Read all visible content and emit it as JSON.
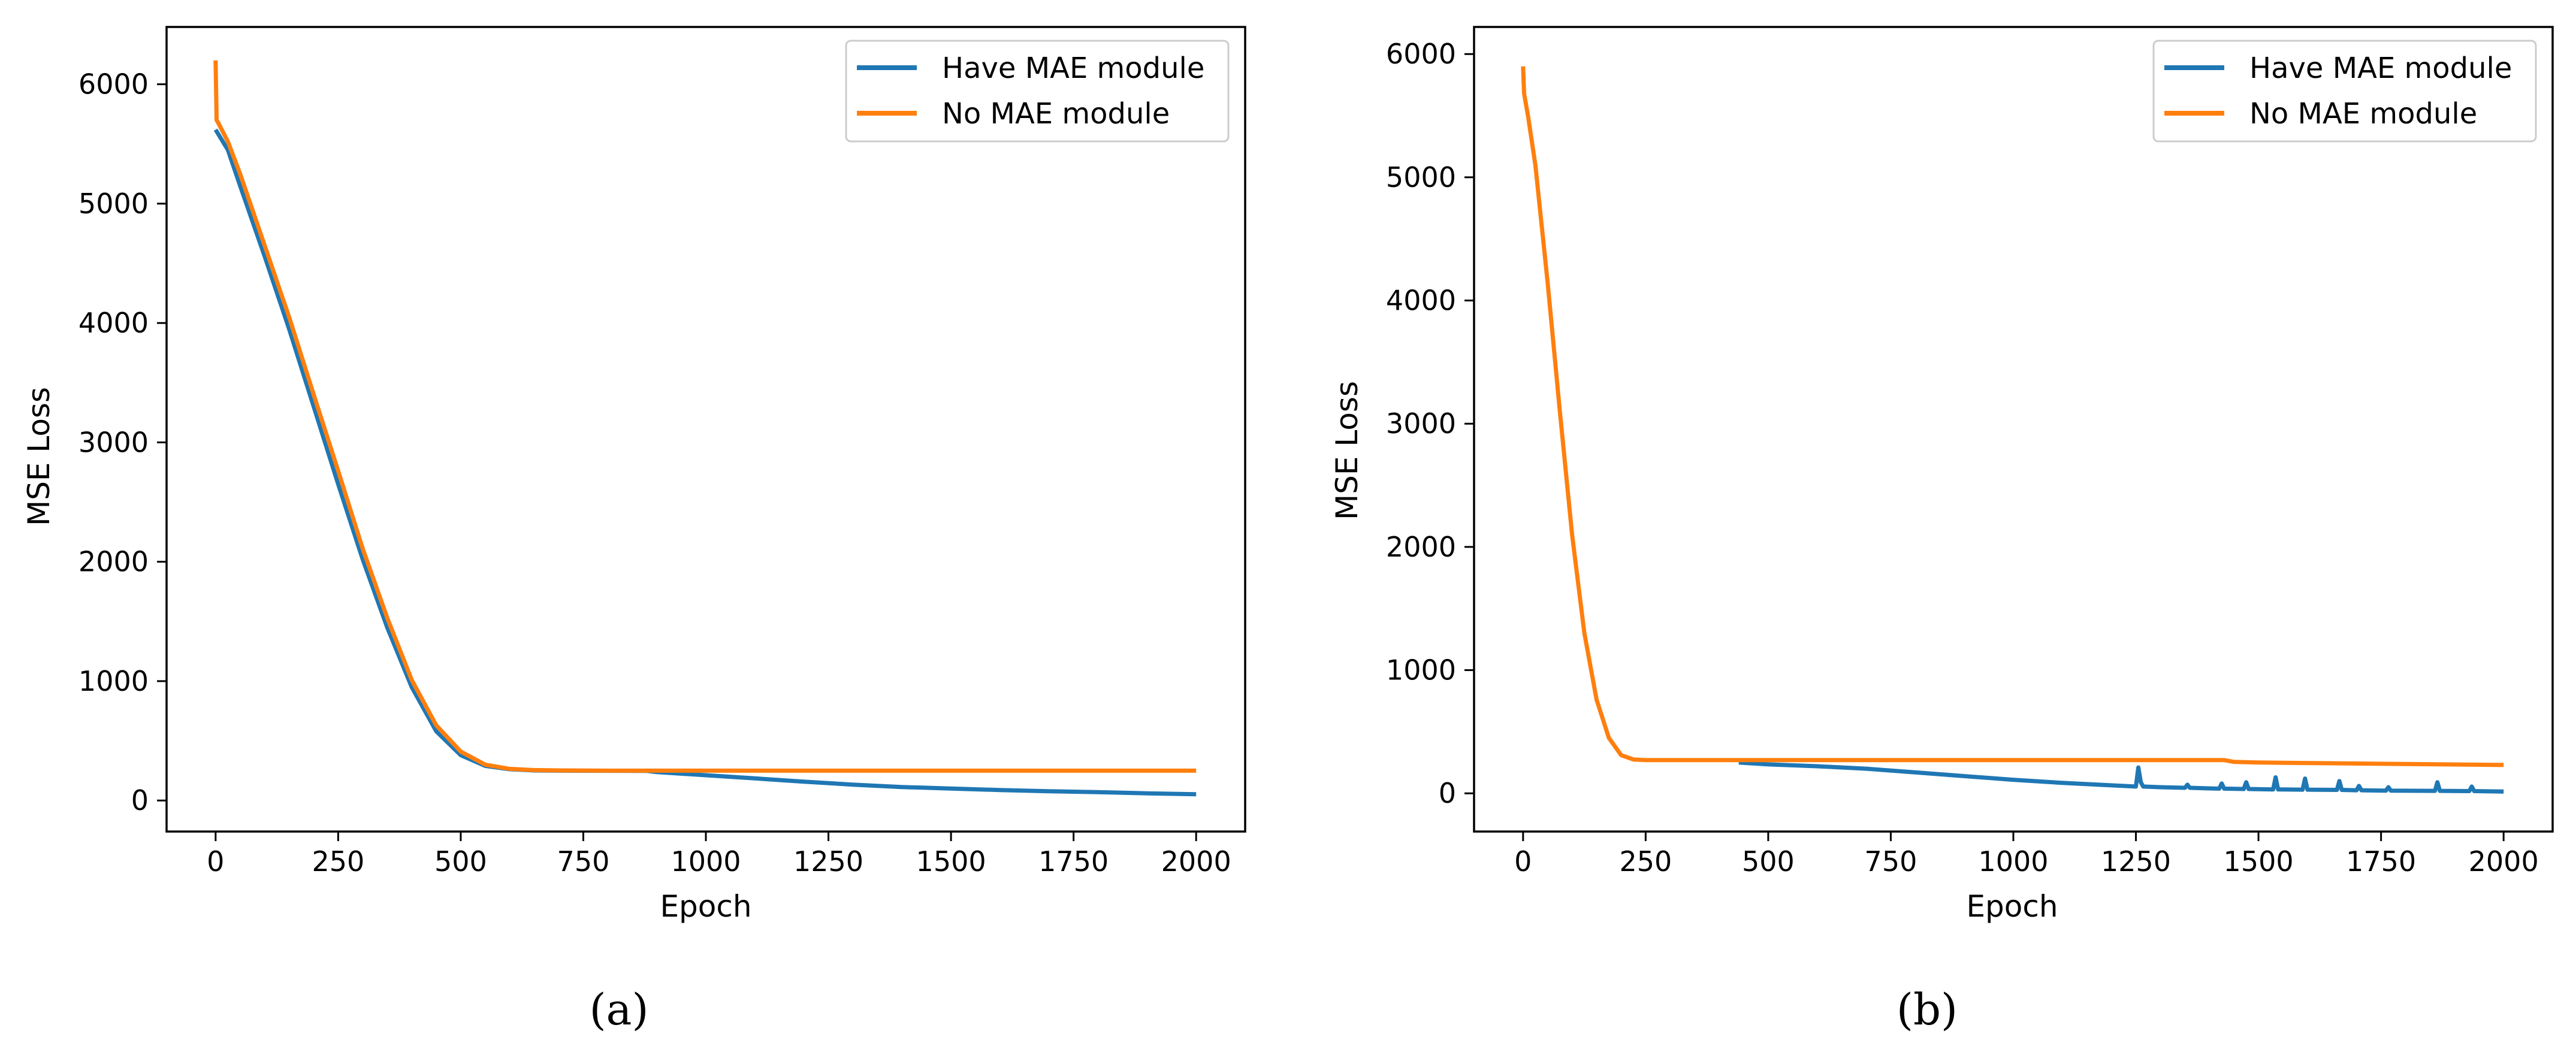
{
  "chart_data": [
    {
      "type": "line",
      "caption": "(a)",
      "xlabel": "Epoch",
      "ylabel": "MSE Loss",
      "xlim": [
        -100,
        2100
      ],
      "ylim": [
        -260,
        6480
      ],
      "xticks": [
        0,
        250,
        500,
        750,
        1000,
        1250,
        1500,
        1750,
        2000
      ],
      "yticks": [
        0,
        1000,
        2000,
        3000,
        4000,
        5000,
        6000
      ],
      "legend_position": "top-right",
      "grid": false,
      "series": [
        {
          "name": "Have MAE module",
          "color": "#1f77b4",
          "x": [
            0,
            25,
            50,
            100,
            150,
            200,
            250,
            300,
            350,
            400,
            450,
            500,
            550,
            600,
            650,
            700,
            800,
            880,
            900,
            1000,
            1100,
            1200,
            1300,
            1400,
            1500,
            1600,
            1700,
            1800,
            1900,
            2000
          ],
          "y": [
            5620,
            5450,
            5150,
            4560,
            3950,
            3300,
            2650,
            2020,
            1450,
            950,
            580,
            380,
            290,
            262,
            252,
            250,
            249,
            248,
            238,
            212,
            185,
            158,
            133,
            113,
            100,
            88,
            78,
            70,
            60,
            52
          ]
        },
        {
          "name": "No MAE module",
          "color": "#ff7f0e",
          "x": [
            0,
            2,
            5,
            25,
            50,
            100,
            150,
            200,
            250,
            300,
            350,
            400,
            450,
            500,
            550,
            600,
            650,
            700,
            800,
            1000,
            1250,
            1500,
            1750,
            2000
          ],
          "y": [
            6200,
            5700,
            5680,
            5520,
            5250,
            4650,
            4050,
            3400,
            2760,
            2110,
            1530,
            1010,
            630,
            410,
            300,
            265,
            255,
            252,
            250,
            250,
            250,
            250,
            250,
            250
          ]
        }
      ]
    },
    {
      "type": "line",
      "caption": "(b)",
      "xlabel": "Epoch",
      "ylabel": "MSE Loss",
      "xlim": [
        -100,
        2100
      ],
      "ylim": [
        -310,
        6220
      ],
      "xticks": [
        0,
        250,
        500,
        750,
        1000,
        1250,
        1500,
        1750,
        2000
      ],
      "yticks": [
        0,
        1000,
        2000,
        3000,
        4000,
        5000,
        6000
      ],
      "legend_position": "top-right",
      "grid": false,
      "series": [
        {
          "name": "Have MAE module",
          "color": "#1f77b4",
          "x": [
            440,
            500,
            600,
            700,
            800,
            900,
            1000,
            1100,
            1200,
            1250,
            1255,
            1260,
            1265,
            1300,
            1350,
            1355,
            1360,
            1400,
            1420,
            1425,
            1430,
            1470,
            1475,
            1480,
            1530,
            1535,
            1540,
            1590,
            1595,
            1600,
            1660,
            1665,
            1670,
            1700,
            1705,
            1710,
            1760,
            1765,
            1770,
            1860,
            1865,
            1870,
            1930,
            1935,
            1940,
            2000
          ],
          "y": [
            250,
            235,
            220,
            200,
            170,
            140,
            110,
            85,
            65,
            55,
            210,
            90,
            55,
            50,
            45,
            70,
            45,
            40,
            38,
            80,
            38,
            35,
            90,
            35,
            32,
            130,
            32,
            30,
            120,
            30,
            28,
            100,
            28,
            25,
            60,
            25,
            22,
            50,
            22,
            20,
            90,
            20,
            18,
            55,
            18,
            15
          ]
        },
        {
          "name": "No MAE module",
          "color": "#ff7f0e",
          "x": [
            0,
            2,
            10,
            25,
            50,
            75,
            100,
            125,
            150,
            175,
            200,
            225,
            250,
            300,
            400,
            500,
            750,
            1000,
            1250,
            1430,
            1450,
            1500,
            1750,
            2000
          ],
          "y": [
            5900,
            5680,
            5500,
            5100,
            4150,
            3100,
            2100,
            1300,
            760,
            450,
            310,
            275,
            270,
            270,
            270,
            270,
            270,
            270,
            270,
            270,
            255,
            250,
            240,
            230
          ]
        }
      ]
    }
  ]
}
